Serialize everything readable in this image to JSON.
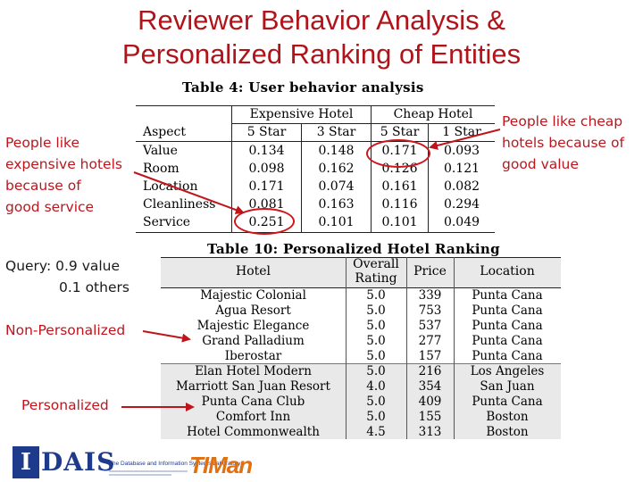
{
  "title_line1": "Reviewer Behavior Analysis &",
  "title_line2": "Personalized Ranking of Entities",
  "table4": {
    "caption": "Table 4:  User behavior analysis",
    "group_headers": [
      "Expensive Hotel",
      "Cheap Hotel"
    ],
    "columns": [
      "Aspect",
      "5 Star",
      "3 Star",
      "5 Star",
      "1 Star"
    ],
    "rows": [
      [
        "Value",
        "0.134",
        "0.148",
        "0.171",
        "0.093"
      ],
      [
        "Room",
        "0.098",
        "0.162",
        "0.126",
        "0.121"
      ],
      [
        "Location",
        "0.171",
        "0.074",
        "0.161",
        "0.082"
      ],
      [
        "Cleanliness",
        "0.081",
        "0.163",
        "0.116",
        "0.294"
      ],
      [
        "Service",
        "0.251",
        "0.101",
        "0.101",
        "0.049"
      ]
    ]
  },
  "table10": {
    "caption": "Table 10:  Personalized Hotel Ranking",
    "columns": [
      "Hotel",
      "Overall",
      "Rating",
      "Price",
      "Location"
    ],
    "rows": [
      [
        "Majestic Colonial",
        "5.0",
        "339",
        "Punta Cana"
      ],
      [
        "Agua Resort",
        "5.0",
        "753",
        "Punta Cana"
      ],
      [
        "Majestic Elegance",
        "5.0",
        "537",
        "Punta Cana"
      ],
      [
        "Grand Palladium",
        "5.0",
        "277",
        "Punta Cana"
      ],
      [
        "Iberostar",
        "5.0",
        "157",
        "Punta Cana"
      ],
      [
        "Elan Hotel Modern",
        "5.0",
        "216",
        "Los Angeles"
      ],
      [
        "Marriott San Juan Resort",
        "4.0",
        "354",
        "San Juan"
      ],
      [
        "Punta Cana Club",
        "5.0",
        "409",
        "Punta Cana"
      ],
      [
        "Comfort Inn",
        "5.0",
        "155",
        "Boston"
      ],
      [
        "Hotel Commonwealth",
        "4.5",
        "313",
        "Boston"
      ]
    ]
  },
  "notes": {
    "left": [
      "People  like",
      "expensive hotels",
      "because of",
      "good service"
    ],
    "right": [
      "People  like cheap",
      "hotels because of",
      "good value"
    ],
    "query_line1": "Query: 0.9 value",
    "query_line2": "0.1 others",
    "non_personalized": "Non-Personalized",
    "personalized": "Personalized"
  },
  "logos": {
    "dais_mark": "I",
    "dais_text": "DAIS",
    "lab_name": "The Database and Information Systems Laboratory",
    "timan": "TIMan"
  },
  "colors": {
    "accent": "#c0141c",
    "title": "#b0141a",
    "logo_blue": "#1e3a8a",
    "logo_orange": "#e07010"
  }
}
